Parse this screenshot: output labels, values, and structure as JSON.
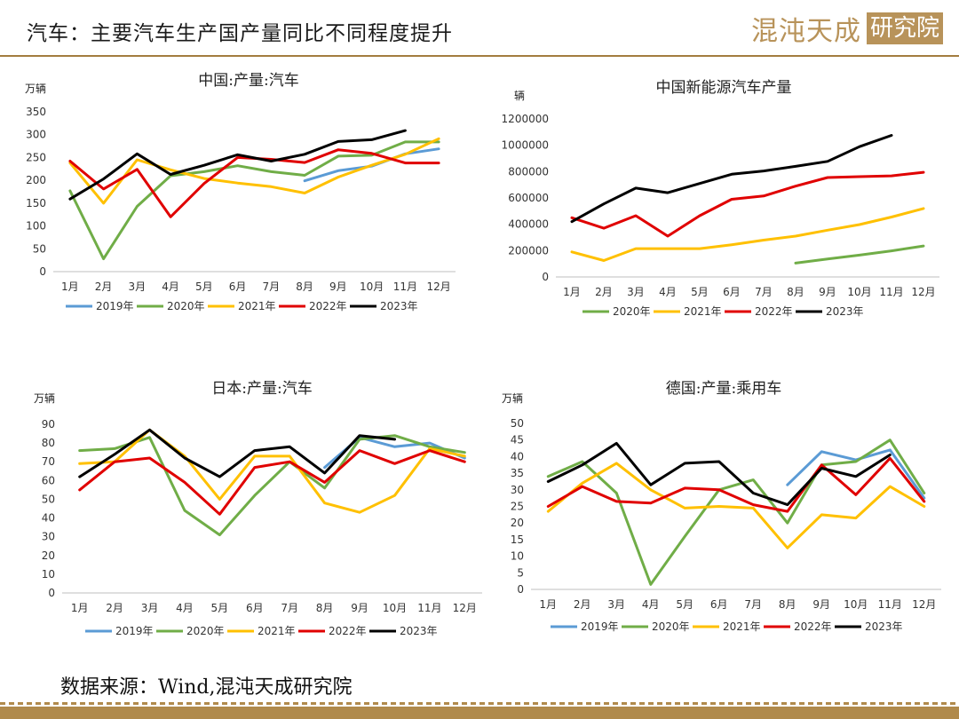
{
  "header": {
    "title": "汽车：主要汽车生产国产量同比不同程度提升",
    "logo_text": "混沌天成",
    "logo_box": "研究院"
  },
  "source": "数据来源：Wind,混沌天成研究院",
  "colors": {
    "2019年": "#5b9bd5",
    "2020年": "#70ad47",
    "2021年": "#ffc000",
    "2022年": "#e00000",
    "2023年": "#000000",
    "accent": "#a37d3f"
  },
  "chart_data": [
    {
      "id": "china",
      "type": "line",
      "title": "中国:产量:汽车",
      "unit": "万辆",
      "categories": [
        "1月",
        "2月",
        "3月",
        "4月",
        "5月",
        "6月",
        "7月",
        "8月",
        "9月",
        "10月",
        "11月",
        "12月"
      ],
      "ylim": [
        0,
        350
      ],
      "yticks": [
        0,
        50,
        100,
        150,
        200,
        250,
        300,
        350
      ],
      "series": [
        {
          "name": "2019年",
          "values": [
            null,
            null,
            null,
            null,
            null,
            null,
            null,
            199,
            221,
            231,
            258,
            269
          ]
        },
        {
          "name": "2020年",
          "values": [
            177,
            28,
            143,
            210,
            219,
            232,
            219,
            211,
            253,
            255,
            284,
            284
          ]
        },
        {
          "name": "2021年",
          "values": [
            238,
            150,
            245,
            223,
            204,
            194,
            186,
            172,
            207,
            233,
            257,
            291
          ]
        },
        {
          "name": "2022年",
          "values": [
            242,
            181,
            224,
            120,
            193,
            250,
            246,
            239,
            267,
            259,
            238,
            238
          ]
        },
        {
          "name": "2023年",
          "values": [
            159,
            203,
            258,
            213,
            233,
            256,
            242,
            257,
            285,
            289,
            309,
            null
          ]
        }
      ],
      "legend": "bottom"
    },
    {
      "id": "china-nev",
      "type": "line",
      "title": "中国新能源汽车产量",
      "unit": "辆",
      "categories": [
        "1月",
        "2月",
        "3月",
        "4月",
        "5月",
        "6月",
        "7月",
        "8月",
        "9月",
        "10月",
        "11月",
        "12月"
      ],
      "ylim": [
        0,
        1200000
      ],
      "yticks": [
        0,
        200000,
        400000,
        600000,
        800000,
        1000000,
        1200000
      ],
      "series": [
        {
          "name": "2020年",
          "values": [
            null,
            null,
            null,
            null,
            null,
            null,
            null,
            105000,
            136000,
            166000,
            198000,
            235000
          ]
        },
        {
          "name": "2021年",
          "values": [
            190000,
            125000,
            215000,
            215000,
            215000,
            245000,
            280000,
            310000,
            355000,
            398000,
            455000,
            520000
          ]
        },
        {
          "name": "2022年",
          "values": [
            450000,
            370000,
            465000,
            310000,
            465000,
            590000,
            615000,
            690000,
            755000,
            762000,
            768000,
            795000
          ]
        },
        {
          "name": "2023年",
          "values": [
            420000,
            555000,
            675000,
            640000,
            710000,
            780000,
            805000,
            840000,
            878000,
            990000,
            1075000,
            null
          ]
        }
      ],
      "legend": "bottom"
    },
    {
      "id": "japan",
      "type": "line",
      "title": "日本:产量:汽车",
      "unit": "万辆",
      "categories": [
        "1月",
        "2月",
        "3月",
        "4月",
        "5月",
        "6月",
        "7月",
        "8月",
        "9月",
        "10月",
        "11月",
        "12月"
      ],
      "ylim": [
        0,
        90
      ],
      "yticks": [
        0,
        10,
        20,
        30,
        40,
        50,
        60,
        70,
        80,
        90
      ],
      "series": [
        {
          "name": "2019年",
          "values": [
            null,
            null,
            null,
            null,
            null,
            null,
            null,
            67,
            83,
            78,
            80,
            72
          ]
        },
        {
          "name": "2020年",
          "values": [
            76,
            77,
            83,
            44,
            31,
            52,
            70,
            56,
            82,
            84,
            78,
            75
          ]
        },
        {
          "name": "2021年",
          "values": [
            69,
            70,
            87,
            73,
            50,
            73,
            73,
            48,
            43,
            52,
            77,
            73
          ]
        },
        {
          "name": "2022年",
          "values": [
            55,
            70,
            72,
            59,
            42,
            67,
            70,
            59,
            76,
            69,
            76,
            70
          ]
        },
        {
          "name": "2023年",
          "values": [
            62,
            74,
            87,
            72,
            62,
            76,
            78,
            64,
            84,
            82,
            null,
            null
          ]
        }
      ],
      "legend": "bottom"
    },
    {
      "id": "germany",
      "type": "line",
      "title": "德国:产量:乘用车",
      "unit": "万辆",
      "categories": [
        "1月",
        "2月",
        "3月",
        "4月",
        "5月",
        "6月",
        "7月",
        "8月",
        "9月",
        "10月",
        "11月",
        "12月"
      ],
      "ylim": [
        0,
        50
      ],
      "yticks": [
        0,
        5,
        10,
        15,
        20,
        25,
        30,
        35,
        40,
        45,
        50
      ],
      "series": [
        {
          "name": "2019年",
          "values": [
            null,
            null,
            null,
            null,
            null,
            null,
            null,
            31.5,
            41.5,
            39,
            42,
            27.5
          ]
        },
        {
          "name": "2020年",
          "values": [
            34,
            38.5,
            29,
            1.5,
            16,
            30,
            33,
            20,
            37.5,
            38.5,
            45,
            29
          ]
        },
        {
          "name": "2021年",
          "values": [
            23.5,
            32,
            38,
            30,
            24.5,
            25,
            24.5,
            12.5,
            22.5,
            21.5,
            31,
            25
          ]
        },
        {
          "name": "2022年",
          "values": [
            25,
            31,
            26.5,
            26,
            30.5,
            30,
            25.5,
            23.5,
            37.5,
            28.5,
            39.5,
            26.5
          ]
        },
        {
          "name": "2023年",
          "values": [
            32.5,
            37.5,
            44,
            31.5,
            38,
            38.5,
            29,
            25.5,
            36.5,
            34,
            40.5,
            null
          ]
        }
      ],
      "legend": "bottom"
    }
  ]
}
